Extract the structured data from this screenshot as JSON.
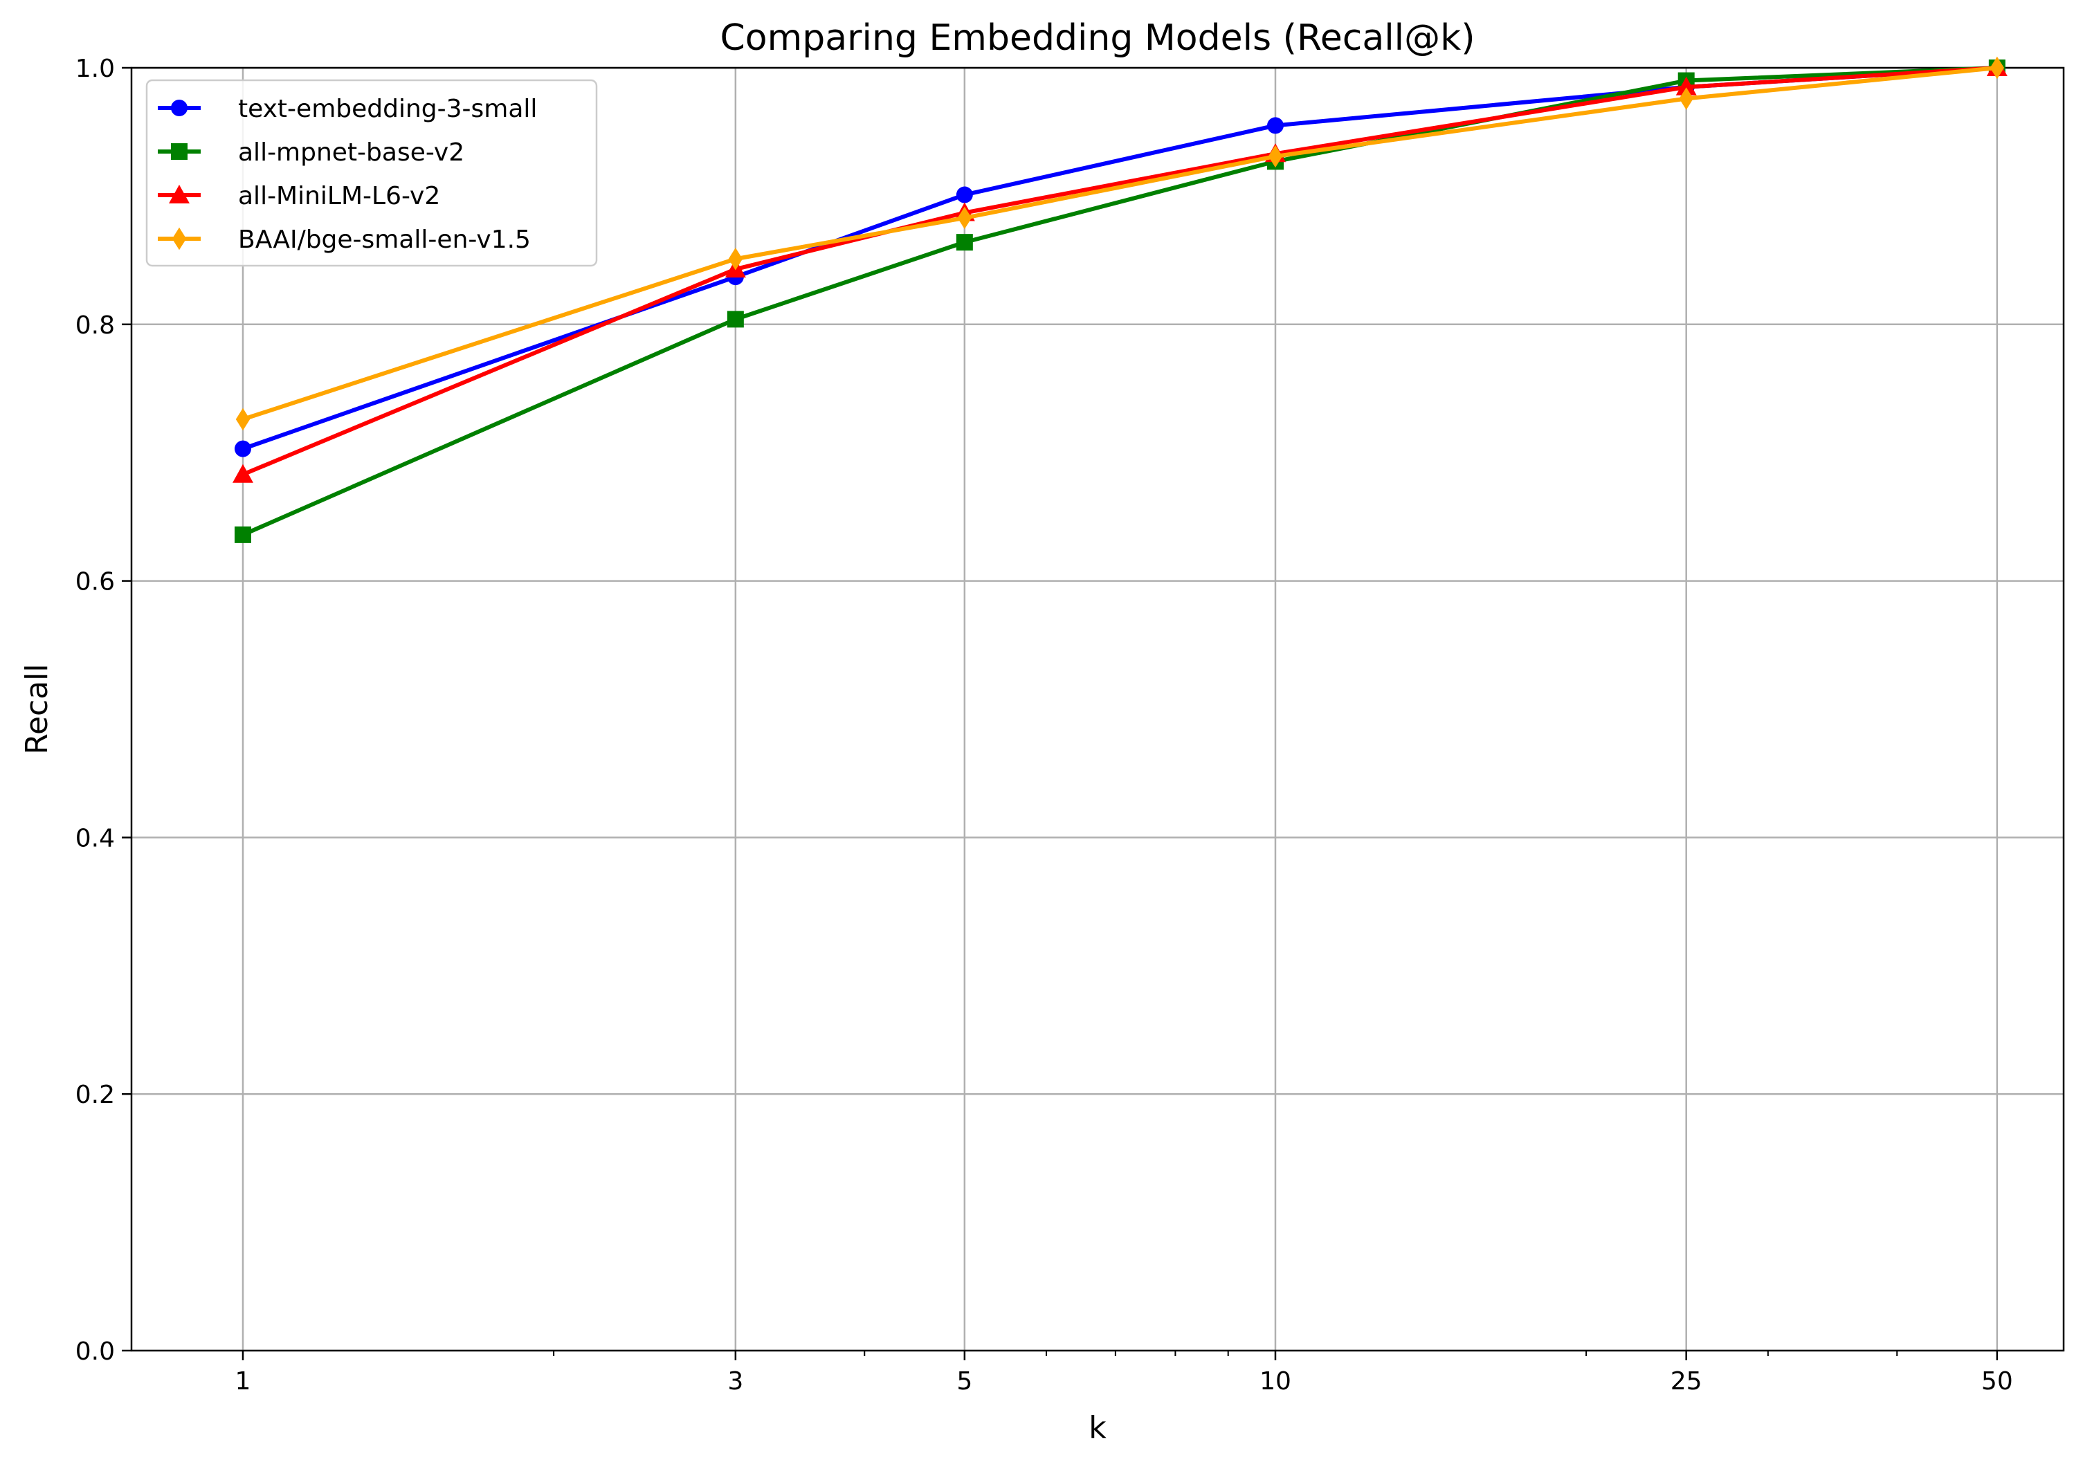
{
  "chart_data": {
    "type": "line",
    "title": "Comparing Embedding Models (Recall@k)",
    "xlabel": "k",
    "ylabel": "Recall",
    "x_scale": "log",
    "x": [
      1,
      3,
      5,
      10,
      25,
      50
    ],
    "x_tick_labels": [
      "1",
      "3",
      "5",
      "10",
      "25",
      "50"
    ],
    "xlim": [
      0.78,
      58
    ],
    "ylim": [
      0,
      1
    ],
    "y_ticks": [
      0.0,
      0.2,
      0.4,
      0.6,
      0.8,
      1.0
    ],
    "y_tick_labels": [
      "0.0",
      "0.2",
      "0.4",
      "0.6",
      "0.8",
      "1.0"
    ],
    "grid": true,
    "legend_position": "top-left",
    "series": [
      {
        "name": "text-embedding-3-small",
        "color": "#0000ff",
        "marker": "circle",
        "values": [
          0.703,
          0.837,
          0.901,
          0.955,
          0.985,
          1.0
        ]
      },
      {
        "name": "all-mpnet-base-v2",
        "color": "#008000",
        "marker": "square",
        "values": [
          0.636,
          0.804,
          0.864,
          0.927,
          0.99,
          1.0
        ]
      },
      {
        "name": "all-MiniLM-L6-v2",
        "color": "#ff0000",
        "marker": "triangle",
        "values": [
          0.683,
          0.843,
          0.887,
          0.933,
          0.985,
          1.0
        ]
      },
      {
        "name": "BAAI/bge-small-en-v1.5",
        "color": "#ffa500",
        "marker": "diamond",
        "values": [
          0.726,
          0.851,
          0.883,
          0.931,
          0.976,
          1.0
        ]
      }
    ]
  }
}
